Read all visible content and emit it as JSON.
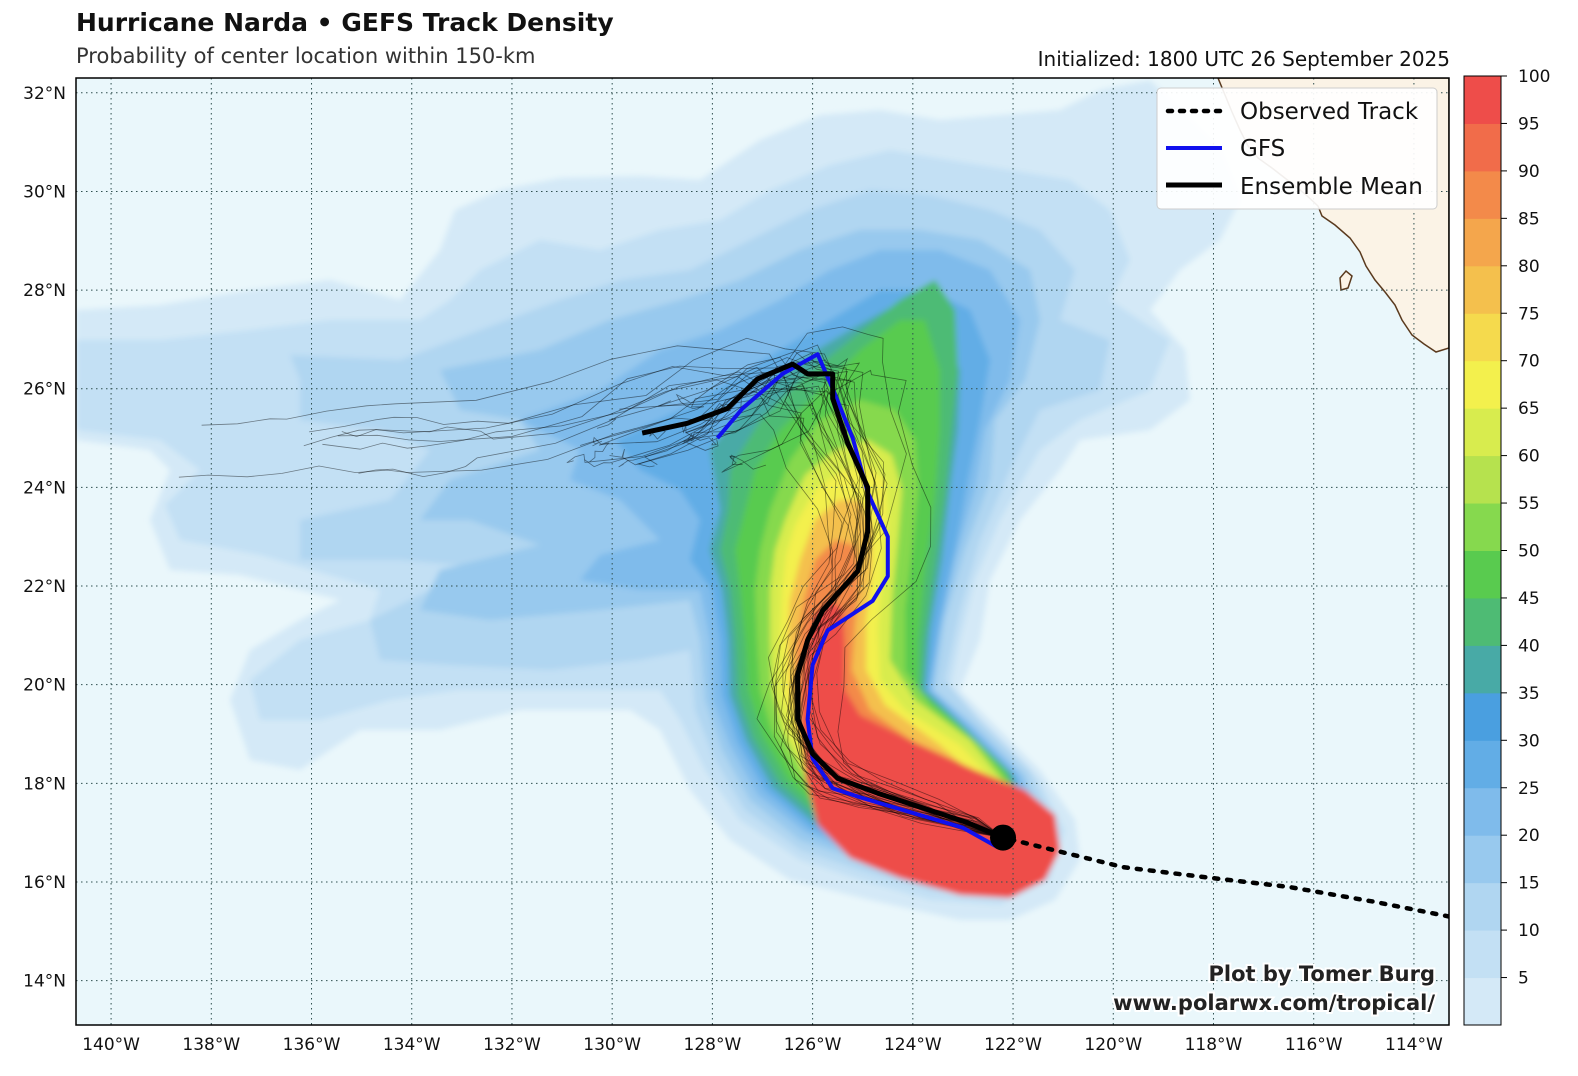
{
  "header": {
    "title": "Hurricane Narda • GEFS Track Density",
    "subtitle": "Probability of center location within 150-km",
    "initialized": "Initialized: 1800 UTC 26 September 2025"
  },
  "map": {
    "lon_range": [
      -140.7,
      -113.3
    ],
    "lat_range": [
      13.1,
      32.3
    ],
    "lon_ticks": [
      "140°W",
      "138°W",
      "136°W",
      "134°W",
      "132°W",
      "130°W",
      "128°W",
      "126°W",
      "124°W",
      "122°W",
      "120°W",
      "118°W",
      "116°W",
      "114°W"
    ],
    "lat_ticks": [
      "14°N",
      "16°N",
      "18°N",
      "20°N",
      "22°N",
      "24°N",
      "26°N",
      "28°N",
      "30°N",
      "32°N"
    ],
    "ocean_color": "#eaf7fb",
    "land_color": "#fbf3e6",
    "coast_color": "#5a3a1e"
  },
  "legend": {
    "items": [
      {
        "label": "Observed Track",
        "color": "#000000",
        "style": "dotted"
      },
      {
        "label": "GFS",
        "color": "#1010ee",
        "style": "solid"
      },
      {
        "label": "Ensemble Mean",
        "color": "#000000",
        "style": "solid"
      }
    ]
  },
  "colorbar": {
    "labels": [
      "5",
      "10",
      "15",
      "20",
      "25",
      "30",
      "35",
      "40",
      "45",
      "50",
      "55",
      "60",
      "65",
      "70",
      "75",
      "80",
      "85",
      "90",
      "95",
      "100"
    ],
    "colors": [
      "#d4e9f7",
      "#c3e0f4",
      "#b0d6f1",
      "#98c9ee",
      "#7fbbeb",
      "#62ade6",
      "#4a9fe0",
      "#48aaa6",
      "#4ebb74",
      "#59cb4f",
      "#86d94e",
      "#b6e24e",
      "#d8ec4e",
      "#f3f04d",
      "#f5da4d",
      "#f4c04d",
      "#f4a64c",
      "#f38a4a",
      "#f16c4a",
      "#ee4d4a"
    ]
  },
  "tracks": {
    "observed": [
      [
        -113.3,
        15.3
      ],
      [
        -114.8,
        15.6
      ],
      [
        -116.5,
        15.9
      ],
      [
        -118.2,
        16.1
      ],
      [
        -119.8,
        16.3
      ],
      [
        -121.0,
        16.6
      ],
      [
        -122.2,
        16.9
      ]
    ],
    "gfs": [
      [
        -122.3,
        16.7
      ],
      [
        -123.0,
        17.1
      ],
      [
        -124.0,
        17.4
      ],
      [
        -125.0,
        17.7
      ],
      [
        -125.6,
        17.9
      ],
      [
        -126.0,
        18.5
      ],
      [
        -126.1,
        19.3
      ],
      [
        -126.0,
        20.4
      ],
      [
        -125.7,
        21.1
      ],
      [
        -124.8,
        21.7
      ],
      [
        -124.5,
        22.2
      ],
      [
        -124.5,
        23.0
      ],
      [
        -124.9,
        23.9
      ],
      [
        -125.2,
        25.0
      ],
      [
        -125.6,
        26.0
      ],
      [
        -125.9,
        26.7
      ],
      [
        -126.6,
        26.3
      ],
      [
        -127.4,
        25.6
      ],
      [
        -127.9,
        25.0
      ]
    ],
    "mean": [
      [
        -122.2,
        16.9
      ],
      [
        -122.9,
        17.2
      ],
      [
        -123.8,
        17.5
      ],
      [
        -124.7,
        17.8
      ],
      [
        -125.5,
        18.1
      ],
      [
        -126.0,
        18.6
      ],
      [
        -126.3,
        19.3
      ],
      [
        -126.3,
        20.2
      ],
      [
        -126.1,
        20.9
      ],
      [
        -125.8,
        21.5
      ],
      [
        -125.1,
        22.3
      ],
      [
        -124.9,
        23.1
      ],
      [
        -124.9,
        24.0
      ],
      [
        -125.3,
        24.9
      ],
      [
        -125.6,
        25.8
      ],
      [
        -125.6,
        26.3
      ],
      [
        -126.1,
        26.3
      ],
      [
        -126.4,
        26.5
      ],
      [
        -127.1,
        26.2
      ],
      [
        -127.7,
        25.6
      ],
      [
        -128.5,
        25.3
      ],
      [
        -129.4,
        25.1
      ]
    ],
    "current_position": [
      -122.2,
      16.9
    ]
  },
  "credit": {
    "line1": "Plot by Tomer Burg",
    "line2": "www.polarwx.com/tropical/"
  }
}
